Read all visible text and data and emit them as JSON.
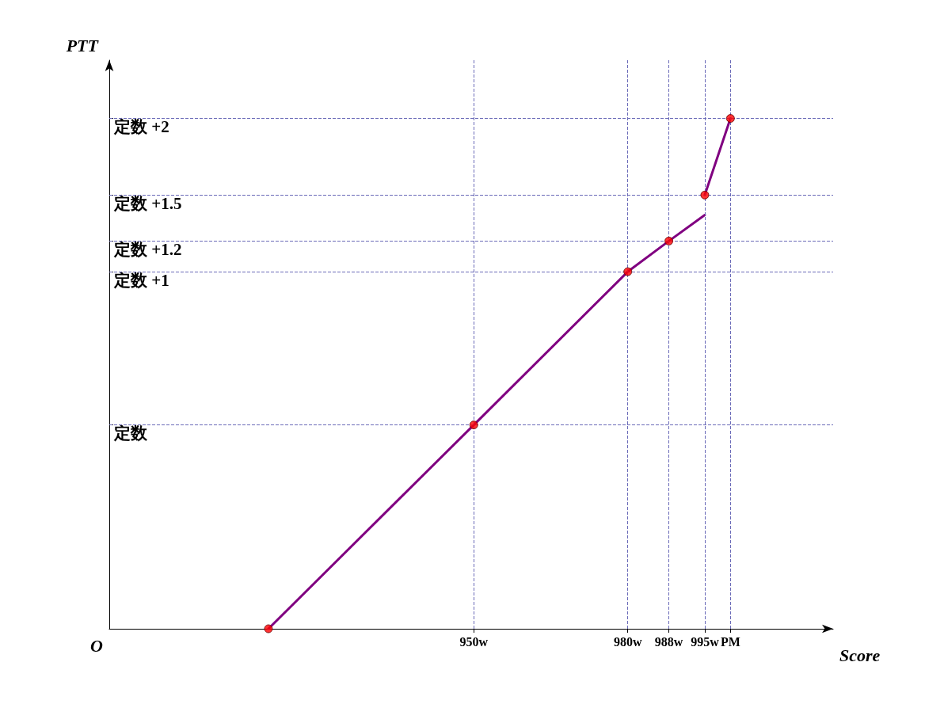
{
  "chart_data": {
    "type": "line",
    "xlabel": "Score",
    "ylabel": "PTT",
    "annotations": [
      "O"
    ],
    "xlim": [
      879,
      1020
    ],
    "ylim": [
      -1.33,
      2.38
    ],
    "xticks": [
      {
        "value": 950,
        "label": "950w"
      },
      {
        "value": 980,
        "label": "980w"
      },
      {
        "value": 988,
        "label": "988w"
      },
      {
        "value": 995,
        "label": "995w"
      },
      {
        "value": 1000,
        "label": "PM"
      }
    ],
    "yticks": [
      {
        "value": 0,
        "label": "定数"
      },
      {
        "value": 1,
        "label": "定数 +1"
      },
      {
        "value": 1.2,
        "label": "定数 +1.2"
      },
      {
        "value": 1.5,
        "label": "定数 +1.5"
      },
      {
        "value": 2,
        "label": "定数 +2"
      }
    ],
    "grid": true,
    "line_style": "solid",
    "series": [
      {
        "color": "#800080",
        "marker": "none",
        "x": [
          910,
          950,
          980,
          988,
          995
        ],
        "values": [
          -1.33,
          0,
          1,
          1.2,
          1.37
        ]
      },
      {
        "color": "#800080",
        "marker": "none",
        "x": [
          995,
          1000
        ],
        "values": [
          1.5,
          2
        ]
      },
      {
        "type": "scatter",
        "color": "#ff0000",
        "marker": "circle",
        "x": [
          910,
          950,
          980,
          988,
          995,
          1000
        ],
        "values": [
          -1.33,
          0,
          1,
          1.2,
          1.5,
          2
        ]
      }
    ]
  }
}
